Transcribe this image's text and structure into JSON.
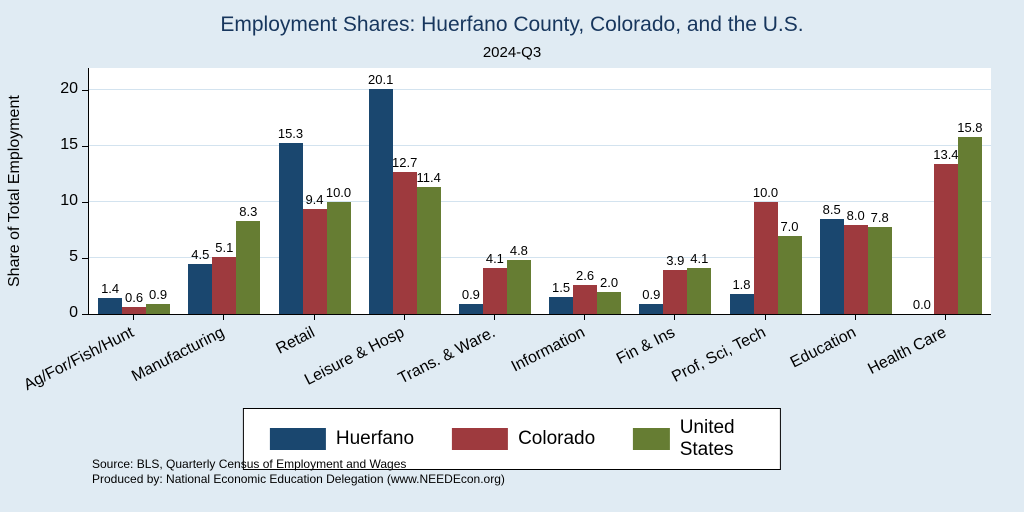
{
  "title": "Employment Shares: Huerfano County, Colorado, and the U.S.",
  "subtitle": "2024-Q3",
  "source_line1": "Source: BLS, Quarterly Census of Employment and Wages",
  "source_line2": "Produced by: National Economic Education Delegation (www.NEEDEcon.org)",
  "colors": {
    "background": "#e0ebf3",
    "plot_background": "#ffffff",
    "gridline": "#d3e3ef",
    "title_text": "#17365d"
  },
  "chart_data": {
    "type": "bar",
    "title": "Employment Shares: Huerfano County, Colorado, and the U.S.",
    "subtitle": "2024-Q3",
    "xlabel": "",
    "ylabel": "Share of Total Employment",
    "ylim": [
      0,
      22
    ],
    "yticks": [
      0,
      5,
      10,
      15,
      20
    ],
    "grid": true,
    "legend_position": "bottom",
    "value_labels": true,
    "categories": [
      "Ag/For/Fish/Hunt",
      "Manufacturing",
      "Retail",
      "Leisure & Hosp",
      "Trans. & Ware.",
      "Information",
      "Fin & Ins",
      "Prof, Sci, Tech",
      "Education",
      "Health Care"
    ],
    "series": [
      {
        "name": "Huerfano",
        "color": "#1a476f",
        "values": [
          1.4,
          4.5,
          15.3,
          20.1,
          0.9,
          1.5,
          0.9,
          1.8,
          8.5,
          0.0
        ]
      },
      {
        "name": "Colorado",
        "color": "#9e3a3e",
        "values": [
          0.6,
          5.1,
          9.4,
          12.7,
          4.1,
          2.6,
          3.9,
          10.0,
          8.0,
          13.4
        ]
      },
      {
        "name": "United States",
        "color": "#667d33",
        "values": [
          0.9,
          8.3,
          10.0,
          11.4,
          4.8,
          2.0,
          4.1,
          7.0,
          7.8,
          15.8
        ]
      }
    ]
  }
}
